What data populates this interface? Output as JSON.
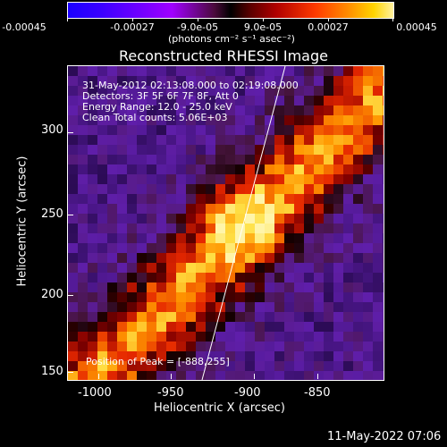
{
  "colorbar": {
    "ticks": [
      "-0.00045",
      "-0.00027",
      "-9.0e-05",
      "9.0e-05",
      "0.00027",
      "0.00045"
    ],
    "units": "(photons cm⁻² s⁻¹ asec⁻²)"
  },
  "title": "Reconstructed RHESSI Image",
  "info": {
    "line1": "31-May-2012 02:13:08.000 to 02:19:08.000",
    "line2": "Detectors: 3F 5F 6F 7F 8F, Att 0",
    "line3": "Energy Range: 12.0 - 25.0 keV",
    "line4": "Clean     Total counts: 5.06E+03"
  },
  "peak_text": "Position of Peak = [-888,255]",
  "x_axis": {
    "label": "Heliocentric X (arcsec)",
    "ticks": [
      "-1000",
      "-950",
      "-900",
      "-850"
    ],
    "range": [
      -1015,
      -826
    ]
  },
  "y_axis": {
    "label": "Heliocentric Y (arcsec)",
    "ticks": [
      "300",
      "250",
      "200",
      "150"
    ],
    "range": [
      148,
      337
    ]
  },
  "footer_date": "11-May-2022 07:06",
  "colors": {
    "background": "#000000",
    "map_low": "#5a1fae",
    "map_high": "#ffee9a"
  }
}
